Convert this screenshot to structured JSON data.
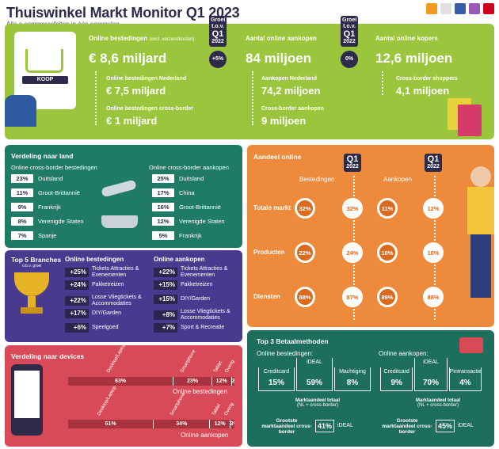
{
  "header": {
    "title": "Thuiswinkel Markt Monitor Q1 2023",
    "subtitle": "Alle e-commercefeiten in één oogopslag"
  },
  "badge": {
    "line1": "Groei",
    "line2": "t.o.v.",
    "q": "Q1",
    "year": "2022"
  },
  "top": {
    "kassa_label": "KOOP",
    "online_bestedingen_label": "Online bestedingen",
    "online_bestedingen_note": "(excl. verzendkosten)",
    "online_bestedingen_value": "€ 8,6 miljard",
    "nl_label": "Online bestedingen Nederland",
    "nl_value": "€ 7,5 miljard",
    "cb_label": "Online bestedingen cross-border",
    "cb_value": "€ 1 miljard",
    "growth_bestedingen": "+5%",
    "aankopen_label": "Aantal online aankopen",
    "aankopen_value": "84 miljoen",
    "aankopen_nl_label": "Aankopen Nederland",
    "aankopen_nl_value": "74,2 miljoen",
    "aankopen_cb_label": "Cross-border aankopen",
    "aankopen_cb_value": "9 miljoen",
    "growth_aankopen": "0%",
    "kopers_label": "Aantal online kopers",
    "kopers_value": "12,6 miljoen",
    "cb_shoppers_label": "Cross-border shoppers",
    "cb_shoppers_value": "4,1 miljoen"
  },
  "land": {
    "title": "Verdeling naar land",
    "left_title": "Online cross-border bestedingen",
    "right_title": "Online cross-border aankopen",
    "left": [
      {
        "pct": "23%",
        "country": "Duitsland"
      },
      {
        "pct": "11%",
        "country": "Groot-Brittannië"
      },
      {
        "pct": "9%",
        "country": "Frankrijk"
      },
      {
        "pct": "8%",
        "country": "Verenigde Staten"
      },
      {
        "pct": "7%",
        "country": "Spanje"
      }
    ],
    "right": [
      {
        "pct": "25%",
        "country": "Duitsland"
      },
      {
        "pct": "17%",
        "country": "China"
      },
      {
        "pct": "16%",
        "country": "Groot-Brittannië"
      },
      {
        "pct": "12%",
        "country": "Verenigde Staten"
      },
      {
        "pct": "5%",
        "country": "Frankrijk"
      }
    ]
  },
  "branches": {
    "title": "Top 5 Branches",
    "subtitle": "o.b.v. groei",
    "left_title": "Online bestedingen",
    "right_title": "Online aankopen",
    "left": [
      {
        "pct": "+25%",
        "name": "Tickets Attracties & Evenementen"
      },
      {
        "pct": "+24%",
        "name": "Pakketreizen"
      },
      {
        "pct": "+22%",
        "name": "Losse Vliegtickets & Accommodaties"
      },
      {
        "pct": "+17%",
        "name": "DIY/Garden"
      },
      {
        "pct": "+6%",
        "name": "Speelgoed"
      }
    ],
    "right": [
      {
        "pct": "+22%",
        "name": "Tickets Attracties & Evenementen"
      },
      {
        "pct": "+15%",
        "name": "Pakketreizen"
      },
      {
        "pct": "+15%",
        "name": "DIY/Garden"
      },
      {
        "pct": "+8%",
        "name": "Losse Vliegtickets & Accommodaties"
      },
      {
        "pct": "+7%",
        "name": "Sport & Recreatie"
      }
    ]
  },
  "devices": {
    "title": "Verdeling naar devices",
    "labels": [
      "Desktop/Laptop",
      "Smartphone",
      "Tablet",
      "Overig"
    ],
    "bestedingen": {
      "label": "Online bestedingen",
      "values": [
        "63%",
        "23%",
        "12%",
        "2%"
      ],
      "fractions": [
        0.63,
        0.23,
        0.12,
        0.02
      ]
    },
    "aankopen": {
      "label": "Online aankopen",
      "values": [
        "51%",
        "34%",
        "12%",
        "3%"
      ],
      "fractions": [
        0.51,
        0.34,
        0.12,
        0.03
      ]
    }
  },
  "aandeel": {
    "title": "Aandeel online",
    "col1": "Bestedingen",
    "col2": "Aankopen",
    "rows": [
      {
        "label": "Totale markt",
        "b_now": "32%",
        "b_prev": "32%",
        "a_now": "11%",
        "a_prev": "12%"
      },
      {
        "label": "Producten",
        "b_now": "22%",
        "b_prev": "24%",
        "a_now": "10%",
        "a_prev": "10%"
      },
      {
        "label": "Diensten",
        "b_now": "88%",
        "b_prev": "87%",
        "a_now": "89%",
        "a_prev": "88%"
      }
    ]
  },
  "betaal": {
    "title": "Top 3 Betaalmethoden",
    "left_title": "Online bestedingen:",
    "right_title": "Online aankopen:",
    "left": [
      {
        "name": "Creditcard",
        "pct": "15%"
      },
      {
        "name": "iDEAL",
        "pct": "59%"
      },
      {
        "name": "Machtiging",
        "pct": "8%"
      }
    ],
    "right": [
      {
        "name": "Creditcard",
        "pct": "9%"
      },
      {
        "name": "iDEAL",
        "pct": "70%"
      },
      {
        "name": "Pintransactie",
        "pct": "4%"
      }
    ],
    "markt_label": "Marktaandeel totaal",
    "markt_note": "(NL + cross-border)",
    "grootste_label": "Grootste marktaandeel cross-border",
    "left_cb_pct": "41%",
    "right_cb_pct": "45%",
    "cb_method": "iDEAL"
  },
  "colors": {
    "green": "#9bc53d",
    "teal": "#1f7a66",
    "purple": "#4a3a8f",
    "red": "#d84a57",
    "orange": "#ed8a3c",
    "dark": "#2d2a4a"
  }
}
